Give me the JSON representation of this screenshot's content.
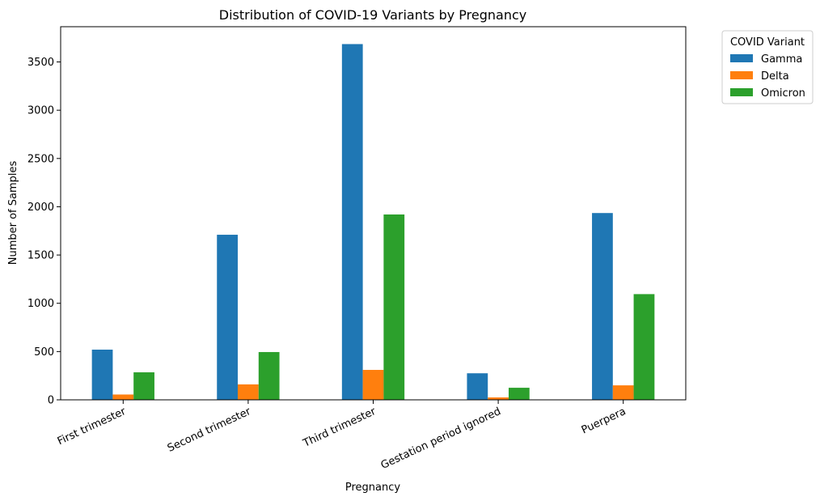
{
  "chart_data": {
    "type": "bar",
    "title": "Distribution of COVID-19 Variants by Pregnancy",
    "xlabel": "Pregnancy",
    "ylabel": "Number of Samples",
    "categories": [
      "First trimester",
      "Second trimester",
      "Third trimester",
      "Gestation period ignored",
      "Puerpera"
    ],
    "series": [
      {
        "name": "Gamma",
        "color": "#1f77b4",
        "values": [
          520,
          1710,
          3685,
          275,
          1935
        ]
      },
      {
        "name": "Delta",
        "color": "#ff7f0e",
        "values": [
          55,
          160,
          310,
          25,
          150
        ]
      },
      {
        "name": "Omicron",
        "color": "#2ca02c",
        "values": [
          285,
          495,
          1920,
          125,
          1095
        ]
      }
    ],
    "ylim": [
      0,
      3865
    ],
    "yticks": [
      0,
      500,
      1000,
      1500,
      2000,
      2500,
      3000,
      3500
    ],
    "grid": false,
    "legend": {
      "title": "COVID Variant",
      "placement": "outside-top-right"
    }
  }
}
